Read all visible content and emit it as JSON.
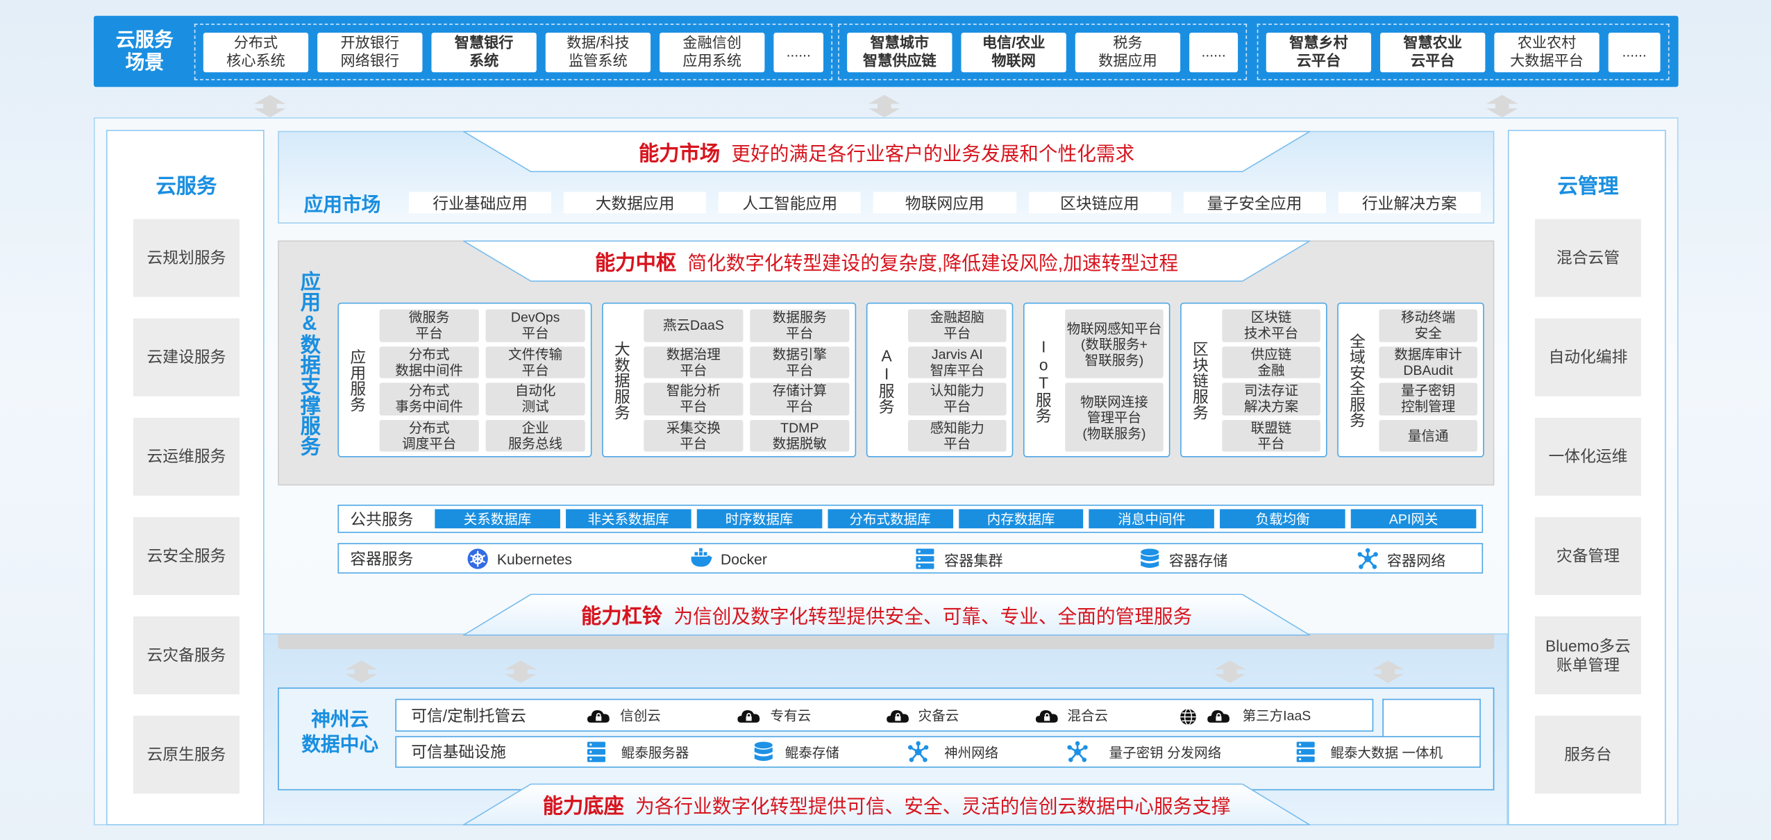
{
  "scenarios": {
    "title": "云服务\n场景",
    "groups": [
      [
        {
          "text": "分布式\n核心系统"
        },
        {
          "text": "开放银行\n网络银行"
        },
        {
          "text": "智慧银行\n系统",
          "bold": true
        },
        {
          "text": "数据/科技\n监管系统"
        },
        {
          "text": "金融信创\n应用系统"
        },
        {
          "text": "......"
        }
      ],
      [
        {
          "text": "智慧城市\n智慧供应链",
          "bold": true
        },
        {
          "text": "电信/农业\n物联网",
          "bold": true
        },
        {
          "text": "税务\n数据应用"
        },
        {
          "text": "......"
        }
      ],
      [
        {
          "text": "智慧乡村\n云平台",
          "bold": true
        },
        {
          "text": "智慧农业\n云平台",
          "bold": true
        },
        {
          "text": "农业农村\n大数据平台"
        },
        {
          "text": "......"
        }
      ]
    ]
  },
  "cloud_services": {
    "title": "云服务",
    "items": [
      "云规划服务",
      "云建设服务",
      "云运维服务",
      "云安全服务",
      "云灾备服务",
      "云原生服务"
    ]
  },
  "cloud_management": {
    "title": "云管理",
    "items": [
      "混合云管",
      "自动化编排",
      "一体化运维",
      "灾备管理",
      "Bluemo多云\n账单管理",
      "服务台"
    ]
  },
  "market": {
    "banner_title": "能力市场",
    "banner_text": "更好的满足各行业客户的业务发展和个性化需求",
    "label": "应用市场",
    "items": [
      "行业基础应用",
      "大数据应用",
      "人工智能应用",
      "物联网应用",
      "区块链应用",
      "量子安全应用",
      "行业解决方案"
    ]
  },
  "hub": {
    "banner_title": "能力中枢",
    "banner_text": "简化数字化转型建设的复杂度,降低建设风险,加速转型过程",
    "label": "应用&数据支撑服务",
    "panels": [
      {
        "label": "应用服务",
        "items": [
          "微服务\n平台",
          "DevOps\n平台",
          "分布式\n数据中间件",
          "文件传输\n平台",
          "分布式\n事务中间件",
          "自动化\n测试",
          "分布式\n调度平台",
          "企业\n服务总线"
        ]
      },
      {
        "label": "大数据服务",
        "items": [
          "燕云DaaS",
          "数据服务\n平台",
          "数据治理\n平台",
          "数据引擎\n平台",
          "智能分析\n平台",
          "存储计算\n平台",
          "采集交换\n平台",
          "TDMP\n数据脱敏"
        ]
      },
      {
        "label": "AI服务",
        "items": [
          "金融超脑\n平台",
          "Jarvis AI\n智库平台",
          "认知能力\n平台",
          "感知能力\n平台"
        ]
      },
      {
        "label": "IoT服务",
        "items": [
          "物联网感知平台\n(数联服务+\n智联服务)",
          "物联网连接\n管理平台\n(物联服务)"
        ]
      },
      {
        "label": "区块链服务",
        "items": [
          "区块链\n技术平台",
          "供应链\n金融",
          "司法存证\n解决方案",
          "联盟链\n平台"
        ]
      },
      {
        "label": "全域安全服务",
        "items": [
          "移动终端\n安全",
          "数据库审计\nDBAudit",
          "量子密钥\n控制管理",
          "量信通"
        ]
      }
    ]
  },
  "public_services": {
    "label": "公共服务",
    "items": [
      "关系数据库",
      "非关系数据库",
      "时序数据库",
      "分布式数据库",
      "内存数据库",
      "消息中间件",
      "负载均衡",
      "API网关"
    ]
  },
  "container_services": {
    "label": "容器服务",
    "items": [
      "Kubernetes",
      "Docker",
      "容器集群",
      "容器存储",
      "容器网络"
    ]
  },
  "lever": {
    "banner_title": "能力杠铃",
    "banner_text": "为信创及数字化转型提供安全、可靠、专业、全面的管理服务"
  },
  "data_center": {
    "label": "神州云\n数据中心",
    "rows": [
      {
        "label": "可信/定制托管云",
        "items": [
          "信创云",
          "专有云",
          "灾备云",
          "混合云",
          "第三方IaaS"
        ]
      },
      {
        "label": "可信基础设施",
        "items": [
          "鲲泰服务器",
          "鲲泰存储",
          "神州网络",
          "量子密钥 分发网络",
          "鲲泰大数据 一体机"
        ]
      }
    ]
  },
  "base": {
    "banner_title": "能力底座",
    "banner_text": "为各行业数字化转型提供可信、安全、灵活的信创云数据中心服务支撑"
  }
}
